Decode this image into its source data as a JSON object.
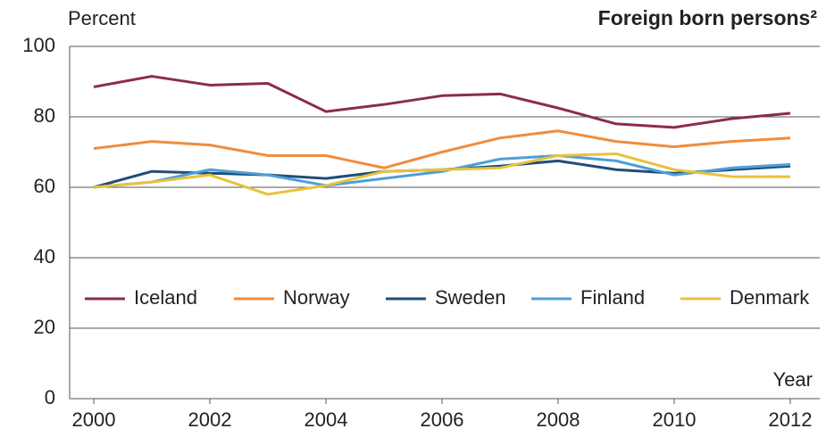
{
  "chart_data": {
    "type": "line",
    "title": "Foreign born persons²",
    "ylabel": "Percent",
    "xlabel": "Year",
    "x": [
      2000,
      2001,
      2002,
      2003,
      2004,
      2005,
      2006,
      2007,
      2008,
      2009,
      2010,
      2011,
      2012
    ],
    "xlim": [
      2000,
      2012
    ],
    "xticks": [
      2000,
      2002,
      2004,
      2006,
      2008,
      2010,
      2012
    ],
    "ylim": [
      0,
      100
    ],
    "yticks": [
      0,
      20,
      40,
      60,
      80,
      100
    ],
    "grid": true,
    "legend": "inside-bottom",
    "series": [
      {
        "name": "Iceland",
        "color": "#8b2d4a",
        "values": [
          88.5,
          91.5,
          89,
          89.5,
          81.5,
          83.5,
          86,
          86.5,
          82.5,
          78,
          77,
          79.5,
          81
        ]
      },
      {
        "name": "Norway",
        "color": "#f08c3c",
        "values": [
          71,
          73,
          72,
          69,
          69,
          65.5,
          70,
          74,
          76,
          73,
          71.5,
          73,
          74
        ]
      },
      {
        "name": "Sweden",
        "color": "#1f4e79",
        "values": [
          60,
          64.5,
          64,
          63.5,
          62.5,
          64.5,
          65,
          66,
          67.5,
          65,
          64,
          65,
          66
        ]
      },
      {
        "name": "Finland",
        "color": "#4f9fd6",
        "values": [
          60,
          61.5,
          65,
          63.5,
          60.5,
          62.5,
          64.5,
          68,
          69,
          67.5,
          63.5,
          65.5,
          66.5
        ]
      },
      {
        "name": "Denmark",
        "color": "#e8c23c",
        "values": [
          60,
          61.5,
          63.5,
          58,
          60.5,
          64.5,
          65,
          65.5,
          69,
          69.5,
          65,
          63,
          63
        ]
      }
    ]
  }
}
